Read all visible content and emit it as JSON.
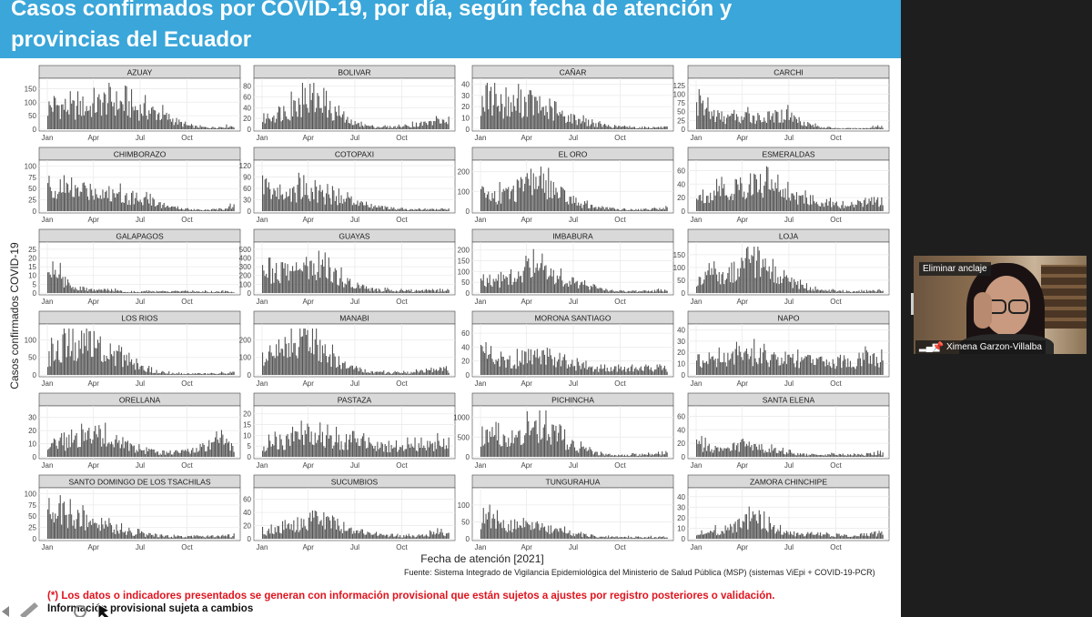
{
  "slide": {
    "title_line1": "Casos confirmados por COVID-19, por día, según fecha de atención y",
    "title_line2": "provincias del Ecuador",
    "ylabel": "Casos confirmados COVID-19",
    "xlabel": "Fecha de atención [2021]",
    "source": "Fuente: Sistema Integrado de Vigilancia Epidemiológica del Ministerio de Salud Pública (MSP) (sistemas ViEpi + COVID-19-PCR)",
    "disclaimer": "(*) Los datos o indicadores presentados se generan con información provisional que están sujetos a ajustes por registro posteriores o validación.",
    "note": "Información provisional sujeta a cambios"
  },
  "video": {
    "unpin_label": "Eliminar anclaje",
    "participant_name": "Ximena Garzon-Villalba"
  },
  "colors": {
    "title_bar": "#3aa6d9",
    "bars": "#555555",
    "strip": "#d9d9d9",
    "disclaimer": "#e0141e"
  },
  "chart_data": {
    "type": "bar",
    "x_ticks": [
      "Jan",
      "Apr",
      "Jul",
      "Oct"
    ],
    "xlabel": "Fecha de atención [2021]",
    "ylabel": "Casos confirmados COVID-19",
    "panels": [
      {
        "name": "AZUAY",
        "yticks": [
          0,
          50,
          100,
          150
        ],
        "ymax": 175,
        "profile": [
          95,
          110,
          100,
          95,
          90,
          100,
          95,
          105,
          120,
          130,
          115,
          110,
          100,
          90,
          85,
          80,
          70,
          55,
          45,
          30,
          18,
          12,
          10,
          8,
          8,
          10,
          12,
          14
        ]
      },
      {
        "name": "BOLIVAR",
        "yticks": [
          0,
          20,
          40,
          60,
          80
        ],
        "ymax": 88,
        "profile": [
          22,
          28,
          35,
          40,
          45,
          55,
          65,
          70,
          60,
          50,
          40,
          30,
          20,
          14,
          10,
          8,
          6,
          5,
          5,
          5,
          6,
          8,
          10,
          12,
          14,
          16,
          18,
          20
        ]
      },
      {
        "name": "CAÑAR",
        "yticks": [
          0,
          10,
          20,
          30,
          40
        ],
        "ymax": 42,
        "profile": [
          30,
          32,
          28,
          26,
          24,
          26,
          28,
          30,
          25,
          22,
          18,
          16,
          14,
          12,
          10,
          8,
          6,
          5,
          4,
          3,
          3,
          2,
          2,
          2,
          2,
          2,
          2,
          2
        ]
      },
      {
        "name": "CARCHI",
        "yticks": [
          0,
          25,
          50,
          75,
          100,
          125
        ],
        "ymax": 135,
        "profile": [
          80,
          70,
          55,
          45,
          40,
          38,
          35,
          40,
          45,
          40,
          38,
          42,
          45,
          48,
          40,
          30,
          20,
          12,
          8,
          6,
          4,
          3,
          3,
          3,
          3,
          5,
          8,
          6
        ]
      },
      {
        "name": "CHIMBORAZO",
        "yticks": [
          0,
          25,
          50,
          75,
          100
        ],
        "ymax": 105,
        "profile": [
          70,
          60,
          55,
          50,
          50,
          55,
          58,
          55,
          50,
          45,
          42,
          40,
          38,
          35,
          30,
          25,
          20,
          15,
          10,
          8,
          6,
          5,
          4,
          4,
          4,
          5,
          8,
          15
        ]
      },
      {
        "name": "COTOPAXI",
        "yticks": [
          0,
          30,
          60,
          90,
          120
        ],
        "ymax": 125,
        "profile": [
          90,
          70,
          60,
          55,
          55,
          65,
          75,
          70,
          60,
          50,
          45,
          40,
          35,
          30,
          25,
          20,
          15,
          12,
          10,
          8,
          6,
          5,
          5,
          5,
          5,
          6,
          6,
          6
        ]
      },
      {
        "name": "EL ORO",
        "yticks": [
          0,
          100,
          200
        ],
        "ymax": 240,
        "profile": [
          110,
          100,
          95,
          100,
          110,
          120,
          140,
          160,
          200,
          170,
          140,
          110,
          90,
          70,
          55,
          40,
          30,
          22,
          18,
          15,
          12,
          10,
          10,
          10,
          12,
          14,
          16,
          18
        ]
      },
      {
        "name": "ESMERALDAS",
        "yticks": [
          0,
          20,
          40,
          60
        ],
        "ymax": 70,
        "profile": [
          25,
          28,
          30,
          32,
          35,
          38,
          40,
          45,
          50,
          48,
          45,
          40,
          35,
          30,
          25,
          22,
          20,
          18,
          16,
          14,
          12,
          10,
          10,
          12,
          14,
          18,
          20,
          12
        ]
      },
      {
        "name": "GALAPAGOS",
        "yticks": [
          0,
          5,
          10,
          15,
          20,
          25
        ],
        "ymax": 27,
        "profile": [
          14,
          18,
          10,
          6,
          4,
          3,
          2,
          2,
          2,
          2,
          2,
          1,
          1,
          1,
          1,
          1,
          1,
          1,
          1,
          1,
          1,
          1,
          1,
          1,
          1,
          1,
          1,
          1
        ]
      },
      {
        "name": "GUAYAS",
        "yticks": [
          0,
          100,
          200,
          300,
          400,
          500
        ],
        "ymax": 540,
        "profile": [
          260,
          270,
          280,
          290,
          300,
          320,
          350,
          380,
          420,
          380,
          300,
          220,
          160,
          120,
          90,
          70,
          55,
          45,
          40,
          35,
          32,
          30,
          28,
          28,
          30,
          32,
          35,
          40
        ]
      },
      {
        "name": "IMBABURA",
        "yticks": [
          0,
          50,
          100,
          150,
          200
        ],
        "ymax": 220,
        "profile": [
          90,
          80,
          70,
          65,
          70,
          80,
          100,
          130,
          140,
          120,
          100,
          85,
          70,
          60,
          50,
          40,
          30,
          22,
          18,
          15,
          12,
          10,
          10,
          10,
          10,
          12,
          14,
          16
        ]
      },
      {
        "name": "LOJA",
        "yticks": [
          0,
          50,
          100,
          150
        ],
        "ymax": 185,
        "profile": [
          60,
          70,
          80,
          85,
          90,
          100,
          120,
          150,
          170,
          140,
          110,
          90,
          70,
          55,
          45,
          35,
          25,
          18,
          14,
          12,
          10,
          8,
          8,
          8,
          8,
          8,
          10,
          10
        ]
      },
      {
        "name": "LOS RIOS",
        "yticks": [
          0,
          50,
          100
        ],
        "ymax": 135,
        "profile": [
          60,
          80,
          100,
          110,
          115,
          110,
          105,
          95,
          85,
          70,
          60,
          50,
          40,
          30,
          22,
          15,
          10,
          8,
          6,
          5,
          5,
          5,
          5,
          5,
          5,
          6,
          6,
          6
        ]
      },
      {
        "name": "MANABI",
        "yticks": [
          0,
          100,
          200
        ],
        "ymax": 270,
        "profile": [
          110,
          130,
          150,
          180,
          200,
          220,
          230,
          210,
          180,
          150,
          120,
          90,
          70,
          50,
          35,
          25,
          20,
          18,
          16,
          15,
          15,
          16,
          20,
          25,
          30,
          35,
          40,
          30
        ]
      },
      {
        "name": "MORONA SANTIAGO",
        "yticks": [
          0,
          20,
          40,
          60
        ],
        "ymax": 68,
        "profile": [
          35,
          30,
          25,
          22,
          22,
          24,
          28,
          30,
          32,
          28,
          25,
          22,
          20,
          18,
          16,
          14,
          12,
          10,
          10,
          10,
          10,
          10,
          10,
          10,
          10,
          12,
          12,
          12
        ]
      },
      {
        "name": "NAPO",
        "yticks": [
          0,
          10,
          20,
          30,
          40
        ],
        "ymax": 42,
        "profile": [
          14,
          15,
          16,
          16,
          17,
          18,
          20,
          22,
          22,
          20,
          18,
          17,
          16,
          16,
          15,
          15,
          14,
          14,
          14,
          14,
          14,
          14,
          15,
          15,
          16,
          18,
          20,
          14
        ]
      },
      {
        "name": "ORELLANA",
        "yticks": [
          0,
          10,
          20,
          30
        ],
        "ymax": 36,
        "profile": [
          10,
          11,
          12,
          13,
          15,
          17,
          19,
          20,
          18,
          16,
          14,
          12,
          10,
          8,
          6,
          5,
          4,
          4,
          4,
          5,
          6,
          7,
          8,
          10,
          12,
          14,
          12,
          8
        ]
      },
      {
        "name": "PASTAZA",
        "yticks": [
          0,
          5,
          10,
          15,
          20
        ],
        "ymax": 22,
        "profile": [
          6,
          7,
          8,
          8,
          9,
          10,
          12,
          12,
          11,
          10,
          10,
          9,
          9,
          8,
          8,
          7,
          7,
          6,
          6,
          6,
          6,
          6,
          6,
          6,
          7,
          7,
          8,
          6
        ]
      },
      {
        "name": "PICHINCHA",
        "yticks": [
          0,
          500,
          1000
        ],
        "ymax": 1200,
        "profile": [
          700,
          650,
          600,
          550,
          560,
          620,
          700,
          800,
          900,
          850,
          750,
          600,
          480,
          380,
          300,
          220,
          150,
          100,
          70,
          60,
          55,
          55,
          60,
          65,
          70,
          80,
          90,
          100
        ]
      },
      {
        "name": "SANTA ELENA",
        "yticks": [
          0,
          20,
          40,
          60
        ],
        "ymax": 70,
        "profile": [
          22,
          20,
          16,
          14,
          14,
          16,
          20,
          22,
          20,
          16,
          14,
          12,
          10,
          8,
          6,
          5,
          4,
          4,
          4,
          4,
          4,
          4,
          4,
          4,
          4,
          5,
          6,
          6
        ]
      },
      {
        "name": "SANTO DOMINGO DE LOS TSACHILAS",
        "yticks": [
          0,
          25,
          50,
          75,
          100
        ],
        "ymax": 105,
        "profile": [
          60,
          62,
          65,
          60,
          55,
          50,
          45,
          40,
          35,
          30,
          25,
          22,
          18,
          15,
          12,
          10,
          8,
          7,
          6,
          6,
          6,
          6,
          6,
          6,
          6,
          7,
          8,
          8
        ]
      },
      {
        "name": "SUCUMBIOS",
        "yticks": [
          0,
          20,
          40,
          60
        ],
        "ymax": 72,
        "profile": [
          12,
          14,
          16,
          18,
          22,
          26,
          30,
          34,
          36,
          32,
          28,
          24,
          20,
          16,
          12,
          10,
          8,
          6,
          5,
          5,
          5,
          5,
          5,
          6,
          8,
          10,
          12,
          10
        ]
      },
      {
        "name": "TUNGURAHUA",
        "yticks": [
          0,
          50,
          100
        ],
        "ymax": 140,
        "profile": [
          80,
          70,
          60,
          50,
          45,
          45,
          48,
          50,
          45,
          40,
          35,
          30,
          25,
          20,
          15,
          12,
          10,
          8,
          7,
          6,
          6,
          6,
          6,
          6,
          6,
          6,
          6,
          6
        ]
      },
      {
        "name": "ZAMORA CHINCHIPE",
        "yticks": [
          0,
          10,
          20,
          30,
          40
        ],
        "ymax": 45,
        "profile": [
          6,
          7,
          8,
          9,
          10,
          12,
          15,
          20,
          28,
          22,
          16,
          12,
          9,
          7,
          6,
          5,
          5,
          4,
          4,
          4,
          4,
          4,
          4,
          4,
          4,
          5,
          6,
          6
        ]
      }
    ]
  }
}
